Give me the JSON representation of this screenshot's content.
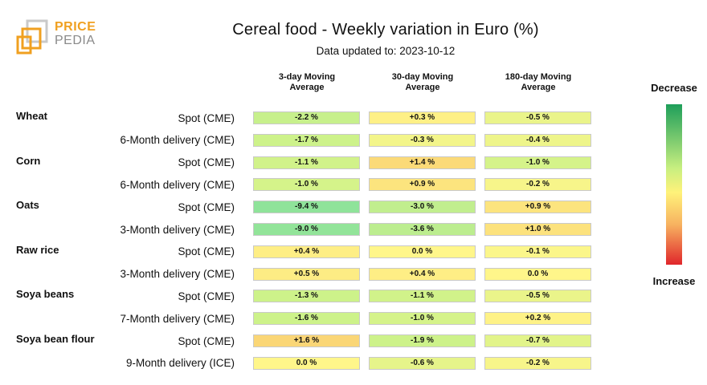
{
  "brand": {
    "line1": "PRICE",
    "line2": "PEDIA"
  },
  "chart_data": {
    "type": "table",
    "title": "Cereal food - Weekly variation in Euro (%)",
    "subtitle": "Data updated to: 2023-10-12",
    "columns": [
      "3-day Moving\nAverage",
      "30-day Moving\nAverage",
      "180-day Moving\nAverage"
    ],
    "legend": {
      "top": "Decrease",
      "bottom": "Increase"
    },
    "groups": [
      {
        "name": "Wheat",
        "rows": [
          {
            "label": "Spot (CME)",
            "values": [
              -2.2,
              0.3,
              -0.5
            ],
            "display": [
              "-2.2 %",
              "+0.3 %",
              "-0.5 %"
            ]
          },
          {
            "label": "6-Month delivery (CME)",
            "values": [
              -1.7,
              -0.3,
              -0.4
            ],
            "display": [
              "-1.7 %",
              "-0.3 %",
              "-0.4 %"
            ]
          }
        ]
      },
      {
        "name": "Corn",
        "rows": [
          {
            "label": "Spot (CME)",
            "values": [
              -1.1,
              1.4,
              -1.0
            ],
            "display": [
              "-1.1 %",
              "+1.4 %",
              "-1.0 %"
            ]
          },
          {
            "label": "6-Month delivery (CME)",
            "values": [
              -1.0,
              0.9,
              -0.2
            ],
            "display": [
              "-1.0 %",
              "+0.9 %",
              "-0.2 %"
            ]
          }
        ]
      },
      {
        "name": "Oats",
        "rows": [
          {
            "label": "Spot (CME)",
            "values": [
              -9.4,
              -3.0,
              0.9
            ],
            "display": [
              "-9.4 %",
              "-3.0 %",
              "+0.9 %"
            ]
          },
          {
            "label": "3-Month delivery (CME)",
            "values": [
              -9.0,
              -3.6,
              1.0
            ],
            "display": [
              "-9.0 %",
              "-3.6 %",
              "+1.0 %"
            ]
          }
        ]
      },
      {
        "name": "Raw rice",
        "rows": [
          {
            "label": "Spot (CME)",
            "values": [
              0.4,
              0.0,
              -0.1
            ],
            "display": [
              "+0.4 %",
              "0.0 %",
              "-0.1 %"
            ]
          },
          {
            "label": "3-Month delivery (CME)",
            "values": [
              0.5,
              0.4,
              0.0
            ],
            "display": [
              "+0.5 %",
              "+0.4 %",
              "0.0 %"
            ]
          }
        ]
      },
      {
        "name": "Soya beans",
        "rows": [
          {
            "label": "Spot (CME)",
            "values": [
              -1.3,
              -1.1,
              -0.5
            ],
            "display": [
              "-1.3 %",
              "-1.1 %",
              "-0.5 %"
            ]
          },
          {
            "label": "7-Month delivery (CME)",
            "values": [
              -1.6,
              -1.0,
              0.2
            ],
            "display": [
              "-1.6 %",
              "-1.0 %",
              "+0.2 %"
            ]
          }
        ]
      },
      {
        "name": "Soya bean flour",
        "rows": [
          {
            "label": "Spot (CME)",
            "values": [
              1.6,
              -1.9,
              -0.7
            ],
            "display": [
              "+1.6 %",
              "-1.9 %",
              "-0.7 %"
            ]
          },
          {
            "label": "9-Month delivery (ICE)",
            "values": [
              0.0,
              -0.6,
              -0.2
            ],
            "display": [
              "0.0 %",
              "-0.6 %",
              "-0.2 %"
            ]
          }
        ]
      }
    ]
  }
}
